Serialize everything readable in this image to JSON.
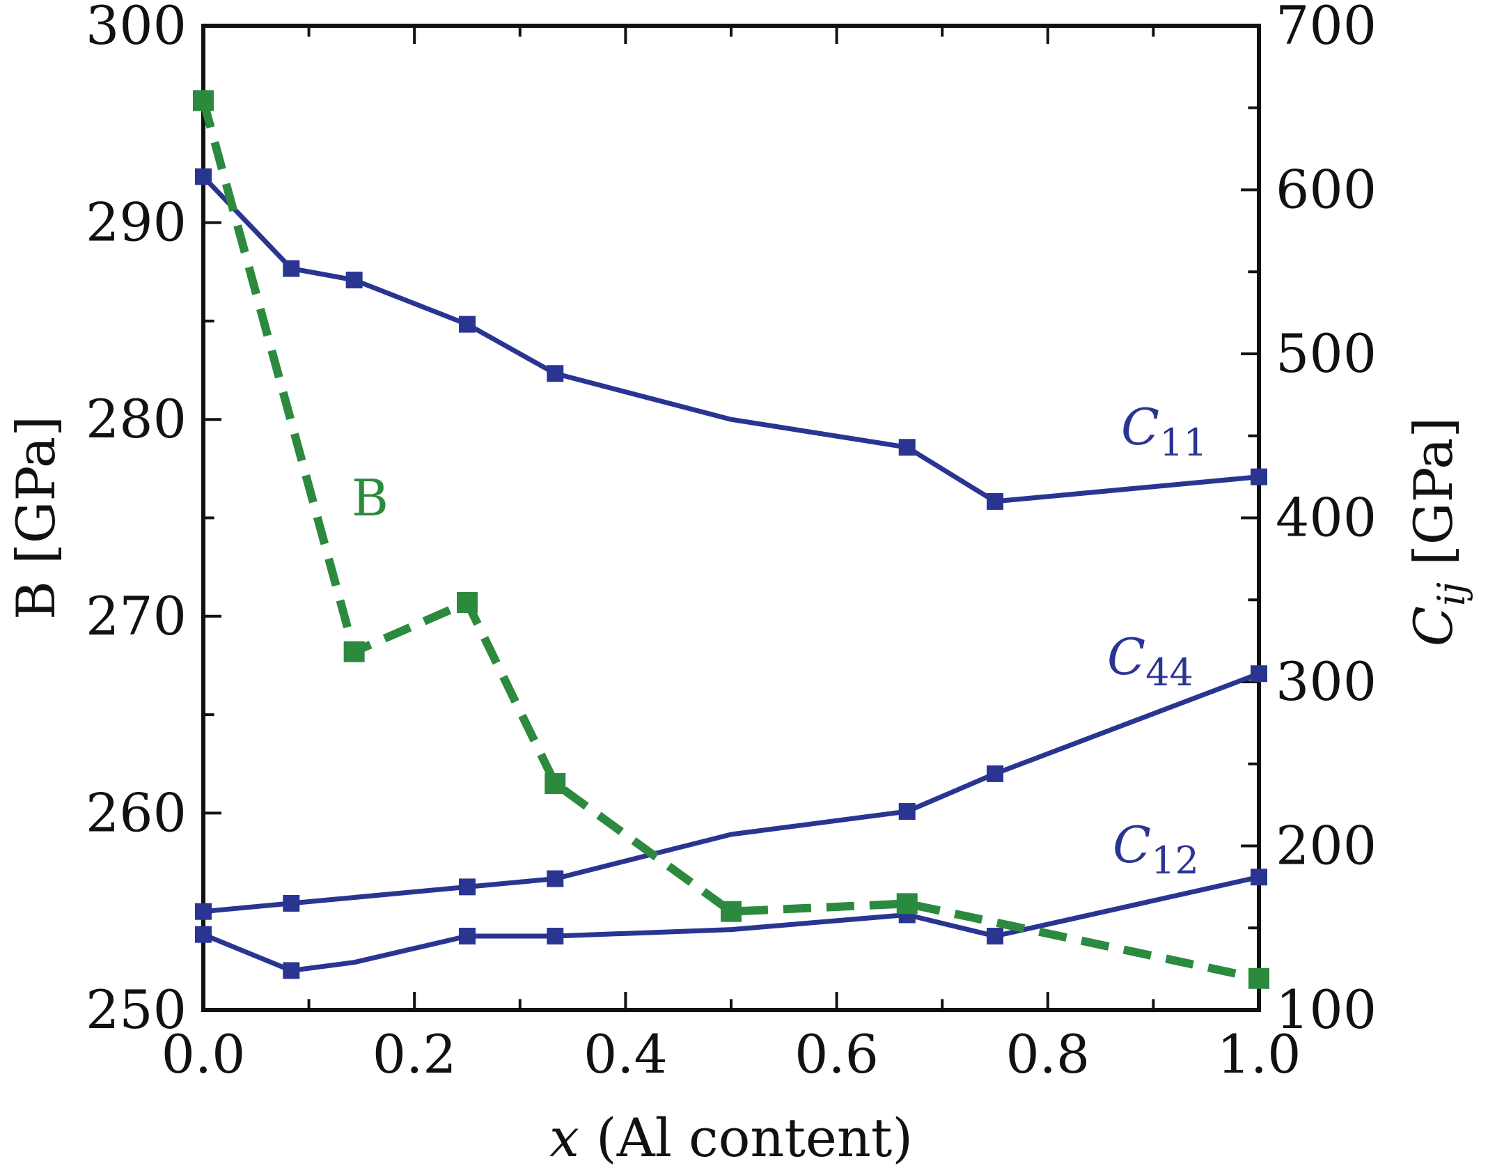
{
  "chart_data": {
    "type": "line",
    "x_axis": {
      "label_var": "x",
      "label_rest": " (Al content)",
      "range": [
        0.0,
        1.0
      ],
      "ticks": [
        0.0,
        0.2,
        0.4,
        0.6,
        0.8,
        1.0
      ],
      "tick_labels": [
        "0.0",
        "0.2",
        "0.4",
        "0.6",
        "0.8",
        "1.0"
      ]
    },
    "y_left": {
      "label": "B [GPa]",
      "range": [
        250,
        300
      ],
      "ticks": [
        250,
        260,
        270,
        280,
        290,
        300
      ],
      "tick_labels": [
        "250",
        "260",
        "270",
        "280",
        "290",
        "300"
      ]
    },
    "y_right": {
      "label_main": "C",
      "label_sub": "ij",
      "label_rest": " [GPa]",
      "range": [
        100,
        700
      ],
      "ticks": [
        100,
        200,
        300,
        400,
        500,
        600,
        700
      ],
      "tick_labels": [
        "100",
        "200",
        "300",
        "400",
        "500",
        "600",
        "700"
      ]
    },
    "series": [
      {
        "name": "C11",
        "label_main": "C",
        "label_sub": "11",
        "axis": "right",
        "color": "#2a3592",
        "style": "solid",
        "x": [
          0.0,
          0.0833,
          0.1429,
          0.25,
          0.3333,
          0.5,
          0.6667,
          0.75,
          1.0
        ],
        "y": [
          608,
          552,
          545,
          518,
          488,
          460,
          443,
          410,
          425
        ],
        "markers": [
          true,
          true,
          true,
          true,
          true,
          false,
          true,
          true,
          true
        ]
      },
      {
        "name": "C44",
        "label_main": "C",
        "label_sub": "44",
        "axis": "right",
        "color": "#2a3592",
        "style": "solid",
        "x": [
          0.0,
          0.0833,
          0.25,
          0.3333,
          0.5,
          0.6667,
          0.75,
          1.0
        ],
        "y": [
          160,
          165,
          175,
          180,
          207,
          221,
          244,
          305
        ],
        "markers": [
          true,
          true,
          true,
          true,
          false,
          true,
          true,
          true
        ]
      },
      {
        "name": "C12",
        "label_main": "C",
        "label_sub": "12",
        "axis": "right",
        "color": "#2a3592",
        "style": "solid",
        "x": [
          0.0,
          0.0833,
          0.1429,
          0.25,
          0.3333,
          0.5,
          0.6667,
          0.75,
          1.0
        ],
        "y": [
          146,
          124,
          129,
          145,
          145,
          149,
          158,
          145,
          181
        ],
        "markers": [
          true,
          true,
          false,
          true,
          true,
          false,
          true,
          true,
          true
        ]
      },
      {
        "name": "B",
        "label_main": "B",
        "axis": "left",
        "color": "#2b8a3e",
        "style": "dashed",
        "x": [
          0.0,
          0.1429,
          0.25,
          0.3333,
          0.5,
          0.6667,
          1.0
        ],
        "y": [
          296.2,
          268.2,
          270.7,
          261.5,
          255.0,
          255.4,
          251.6
        ],
        "markers": [
          true,
          true,
          true,
          true,
          true,
          true,
          true
        ]
      }
    ]
  }
}
